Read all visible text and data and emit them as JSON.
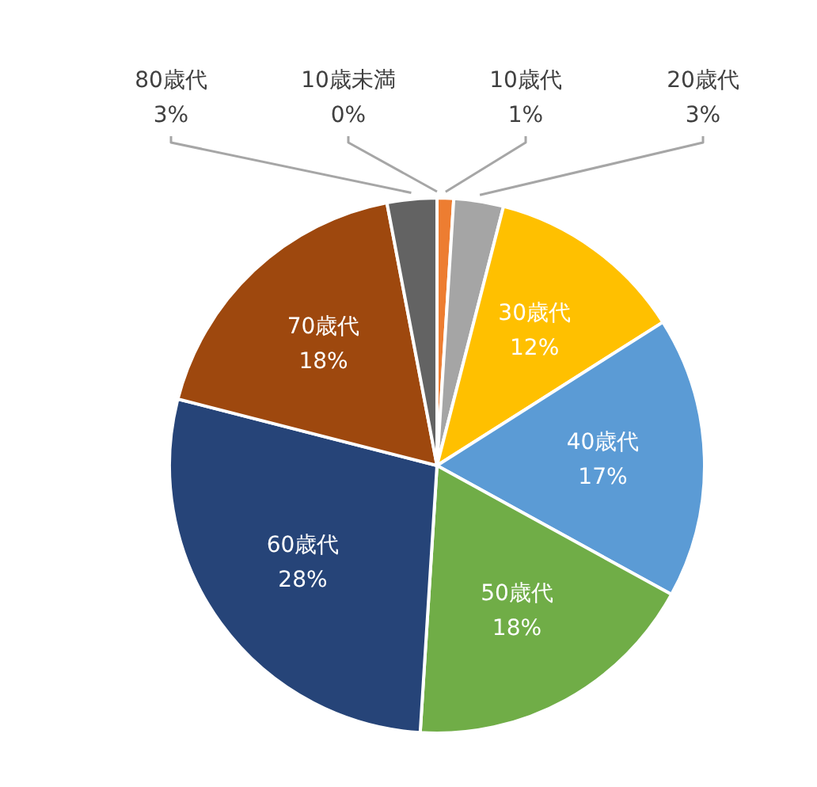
{
  "chart_data": {
    "type": "pie",
    "categories": [
      "10歳未満",
      "10歳代",
      "20歳代",
      "30歳代",
      "40歳代",
      "50歳代",
      "60歳代",
      "70歳代",
      "80歳代"
    ],
    "values": [
      0,
      1,
      3,
      12,
      17,
      18,
      28,
      18,
      3
    ],
    "value_labels": [
      "0%",
      "1%",
      "3%",
      "12%",
      "17%",
      "18%",
      "28%",
      "18%",
      "3%"
    ],
    "colors": [
      "#4472c4",
      "#ed7d31",
      "#a5a5a5",
      "#ffc000",
      "#5b9bd5",
      "#70ad47",
      "#264478",
      "#9e480e",
      "#636363"
    ]
  }
}
